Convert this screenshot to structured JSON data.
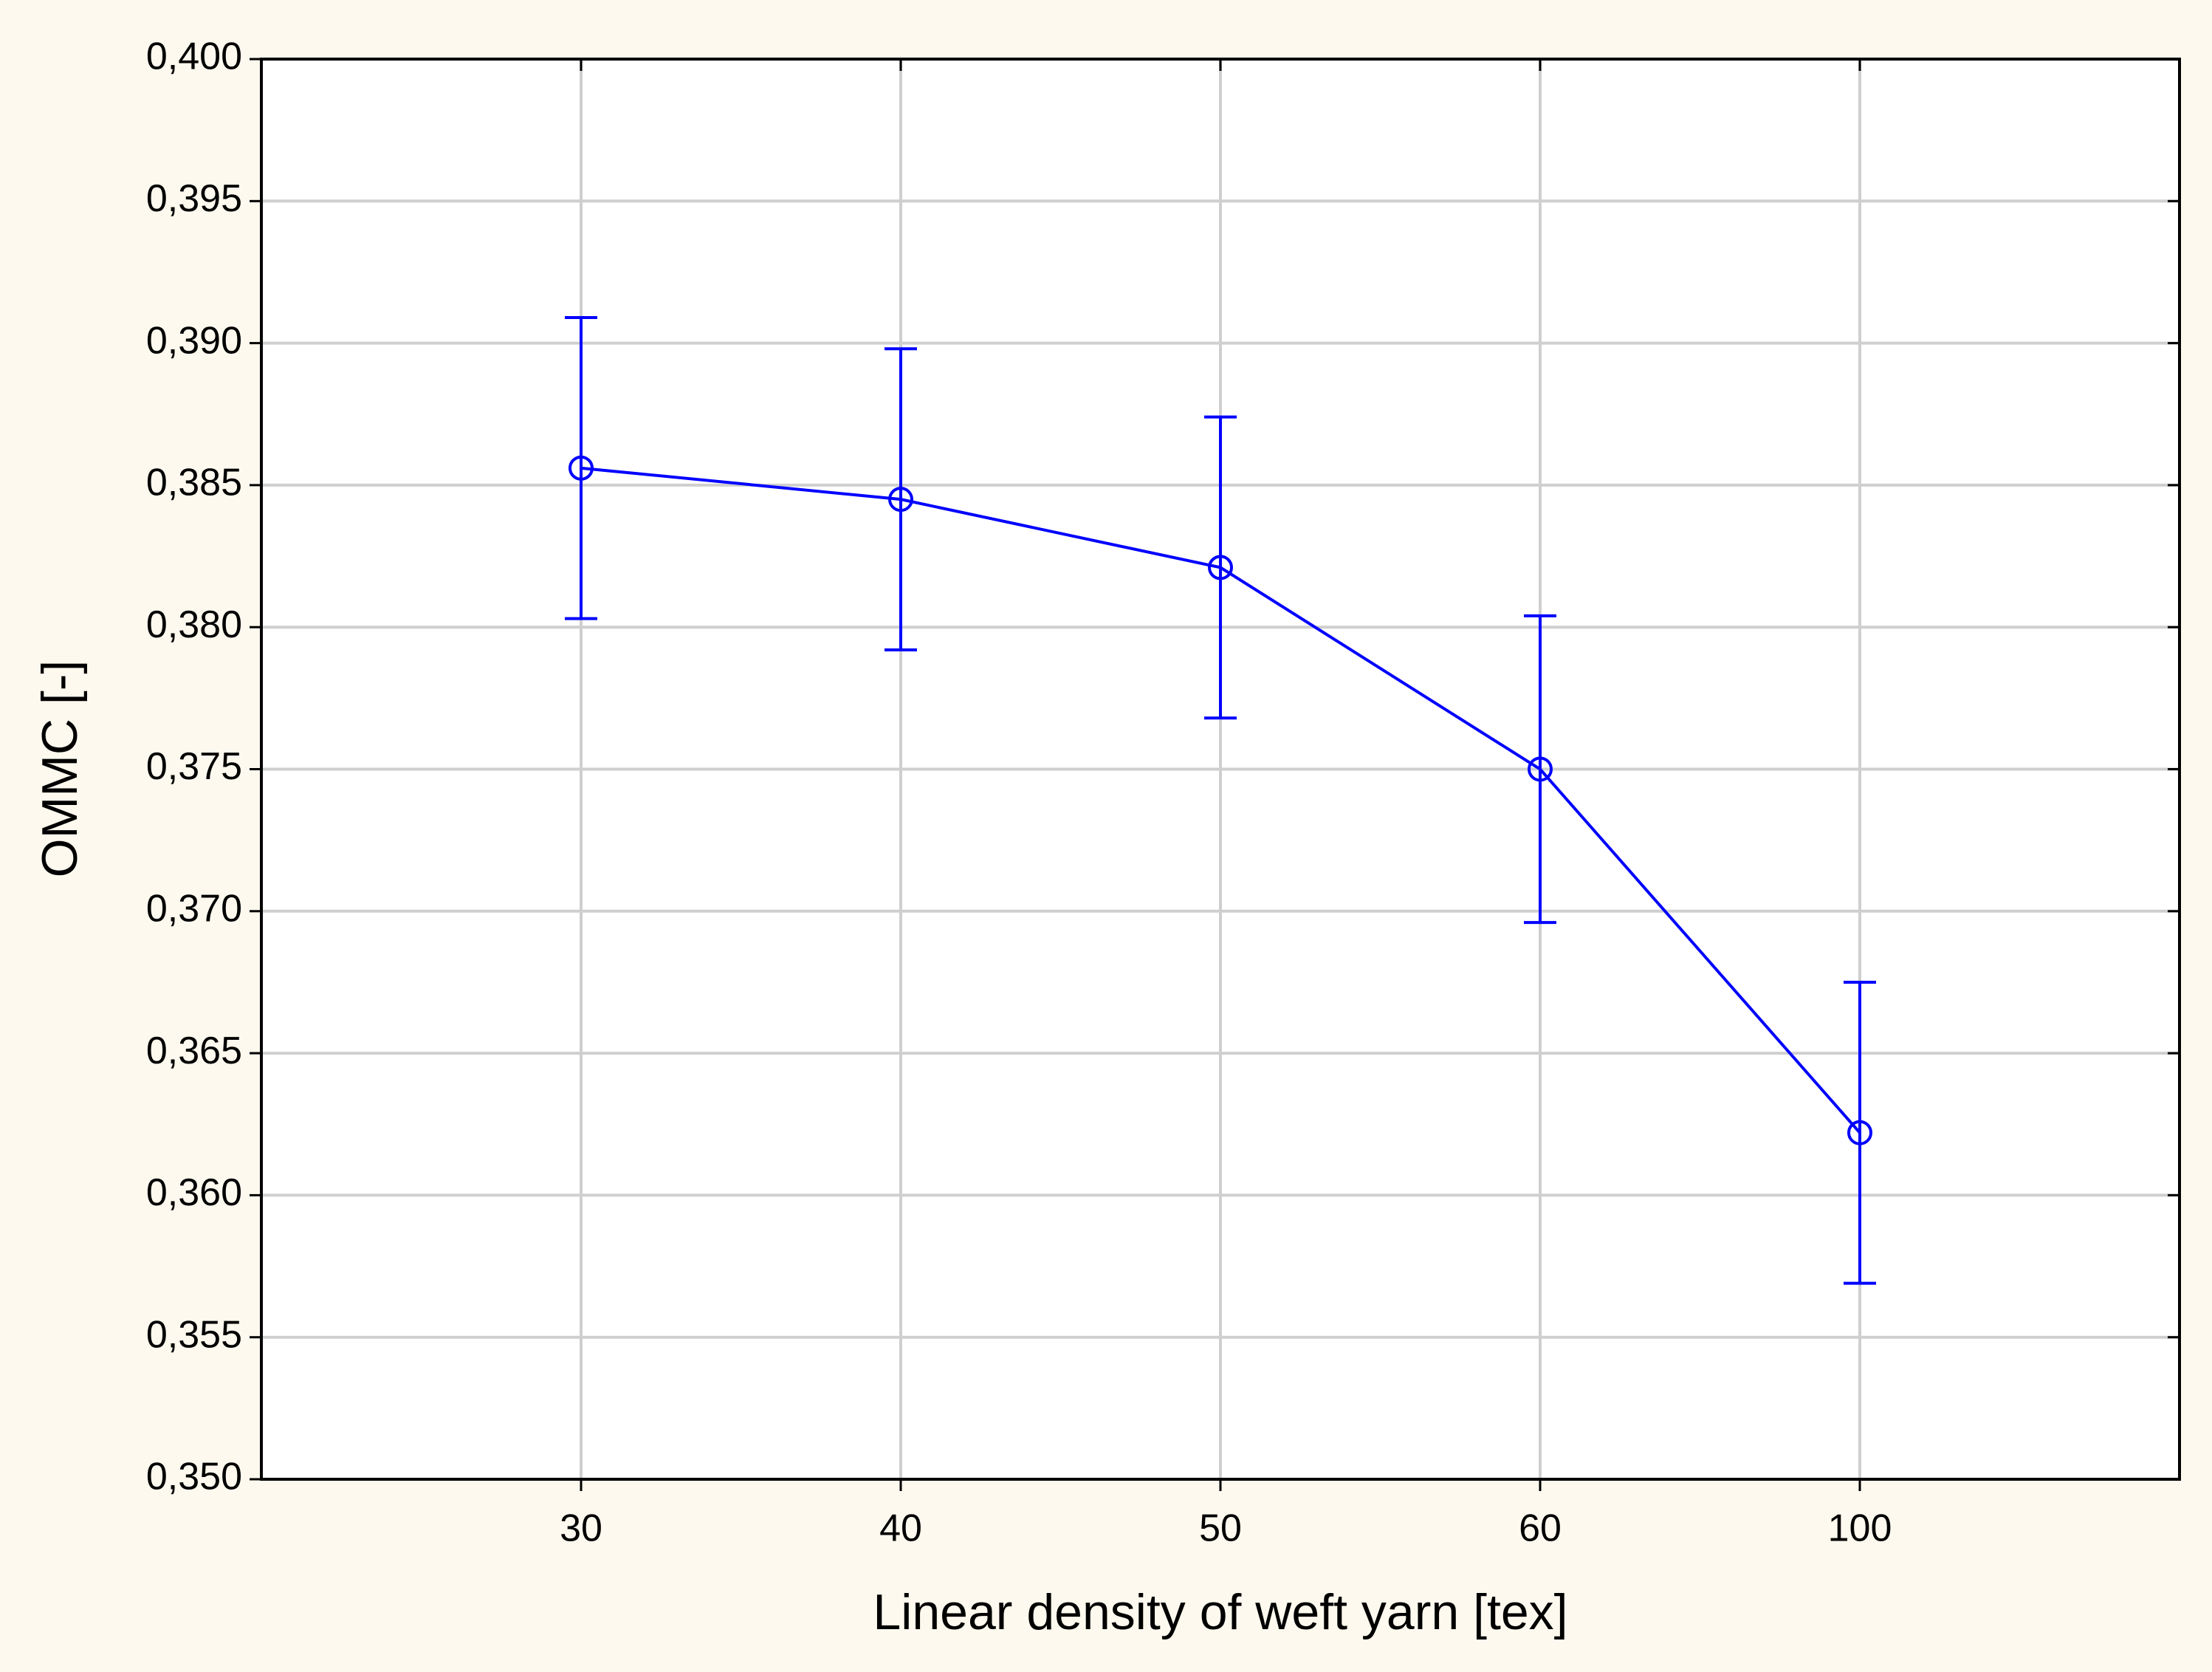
{
  "chart_data": {
    "type": "line",
    "x_label": "Linear density of weft yarn  [tex]",
    "y_label": "OMMC  [-]",
    "categories": [
      "30",
      "40",
      "50",
      "60",
      "100"
    ],
    "values": [
      0.3856,
      0.3845,
      0.3821,
      0.375,
      0.3622
    ],
    "errors": [
      0.0053,
      0.0053,
      0.0053,
      0.0054,
      0.0053
    ],
    "color": "#0000ff",
    "ylim": [
      0.35,
      0.4
    ],
    "yticks": [
      {
        "value": 0.35,
        "label": "0,350"
      },
      {
        "value": 0.355,
        "label": "0,355"
      },
      {
        "value": 0.36,
        "label": "0,360"
      },
      {
        "value": 0.365,
        "label": "0,365"
      },
      {
        "value": 0.37,
        "label": "0,370"
      },
      {
        "value": 0.375,
        "label": "0,375"
      },
      {
        "value": 0.38,
        "label": "0,380"
      },
      {
        "value": 0.385,
        "label": "0,385"
      },
      {
        "value": 0.39,
        "label": "0,390"
      },
      {
        "value": 0.395,
        "label": "0,395"
      },
      {
        "value": 0.4,
        "label": "0,400"
      }
    ],
    "grid": true
  }
}
